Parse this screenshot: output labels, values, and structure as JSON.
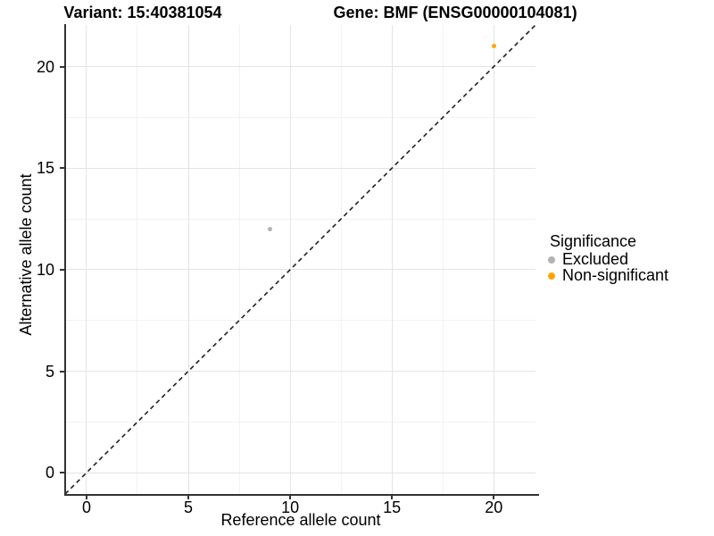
{
  "figure": {
    "background": "#ffffff"
  },
  "title": {
    "variant": "Variant: 15:40381054",
    "gene": "Gene: BMF (ENSG00000104081)"
  },
  "axes": {
    "x_label": "Reference allele count",
    "y_label": "Alternative allele count"
  },
  "legend": {
    "title": "Significance",
    "entries": [
      {
        "label": "Excluded",
        "color": "#b3b3b3"
      },
      {
        "label": "Non-significant",
        "color": "#ffa500"
      }
    ]
  },
  "chart_data": {
    "type": "scatter",
    "title": "Variant: 15:40381054 / Gene: BMF (ENSG00000104081)",
    "xlabel": "Reference allele count",
    "ylabel": "Alternative allele count",
    "xlim": [
      -1.05,
      22.05
    ],
    "ylim": [
      -1.05,
      22.05
    ],
    "x_ticks": [
      0,
      5,
      10,
      15,
      20
    ],
    "y_ticks": [
      0,
      5,
      10,
      15,
      20
    ],
    "x_minor_ticks": [
      2.5,
      7.5,
      12.5,
      17.5
    ],
    "y_minor_ticks": [
      2.5,
      7.5,
      12.5,
      17.5
    ],
    "grid": "major+minor",
    "legend_position": "right",
    "reference_line": {
      "kind": "identity",
      "slope": 1,
      "intercept": 0,
      "style": "dashed",
      "color": "#1f1f1f"
    },
    "series": [
      {
        "name": "Excluded",
        "color": "#b3b3b3",
        "points": [
          [
            9,
            12
          ]
        ]
      },
      {
        "name": "Non-significant",
        "color": "#ffa500",
        "points": [
          [
            20,
            21
          ]
        ]
      }
    ]
  },
  "colors": {
    "grid_major": "#e4e4e4",
    "grid_minor": "#f2f2f2",
    "axis_line": "#333333",
    "text": "#000000"
  }
}
